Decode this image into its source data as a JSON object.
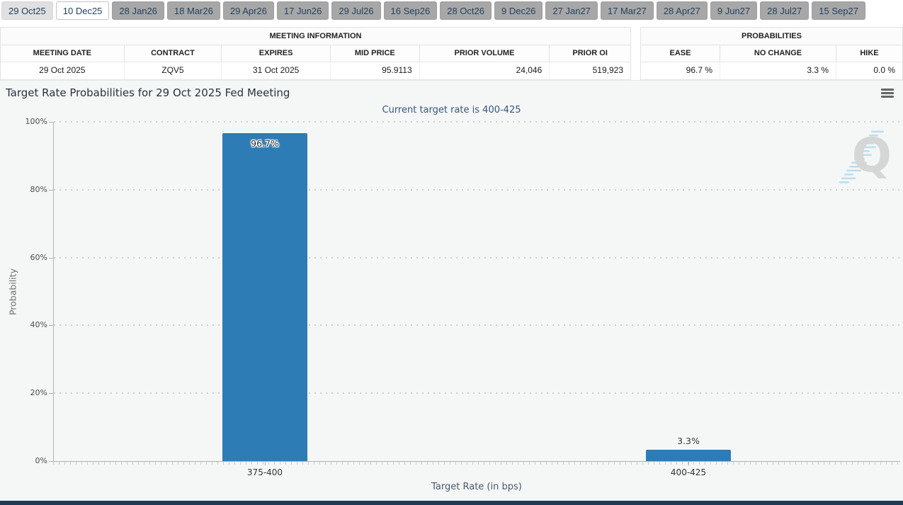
{
  "meeting_tabs": {
    "items": [
      "29 Oct25",
      "10 Dec25",
      "28 Jan26",
      "18 Mar26",
      "29 Apr26",
      "17 Jun26",
      "29 Jul26",
      "16 Sep26",
      "28 Oct26",
      "9 Dec26",
      "27 Jan27",
      "17 Mar27",
      "28 Apr27",
      "9 Jun27",
      "28 Jul27",
      "15 Sep27"
    ],
    "active_index": 1,
    "dimmed_index": 0
  },
  "meeting_info": {
    "title": "MEETING INFORMATION",
    "columns": [
      "MEETING DATE",
      "CONTRACT",
      "EXPIRES",
      "MID PRICE",
      "PRIOR VOLUME",
      "PRIOR OI"
    ],
    "values": [
      "29 Oct 2025",
      "ZQV5",
      "31 Oct 2025",
      "95.9113",
      "24,046",
      "519,923"
    ]
  },
  "probabilities": {
    "title": "PROBABILITIES",
    "columns": [
      "EASE",
      "NO CHANGE",
      "HIKE"
    ],
    "values": [
      "96.7 %",
      "3.3 %",
      "0.0 %"
    ]
  },
  "chart": {
    "title": "Target Rate Probabilities for 29 Oct 2025 Fed Meeting",
    "subtitle": "Current target rate is 400-425",
    "menu_icon": "hamburger-icon",
    "watermark_letter": "Q"
  },
  "chart_data": {
    "type": "bar",
    "title": "Target Rate Probabilities for 29 Oct 2025 Fed Meeting",
    "subtitle": "Current target rate is 400-425",
    "categories": [
      "375-400",
      "400-425"
    ],
    "values": [
      96.7,
      3.3
    ],
    "value_labels": [
      "96.7%",
      "3.3%"
    ],
    "xlabel": "Target Rate (in bps)",
    "ylabel": "Probability",
    "ylim": [
      0,
      100
    ],
    "ytick_values": [
      0,
      20,
      40,
      60,
      80,
      100
    ],
    "ytick_labels": [
      "0%",
      "20%",
      "40%",
      "60%",
      "80%",
      "100%"
    ],
    "grid": "dotted-horizontal",
    "legend": "none",
    "bar_color": "#2d7cb5"
  },
  "colors": {
    "bar": "#2d7cb5",
    "tab_inactive_bg": "#a7a7a7",
    "tab_first_bg": "#e0e0e0",
    "tab_active_bg": "#ffffff",
    "tab_text": "#24425f",
    "subtitle_text": "#35567a",
    "chart_background": "#f5f6f6",
    "footer_bar": "#1d3b5a"
  }
}
